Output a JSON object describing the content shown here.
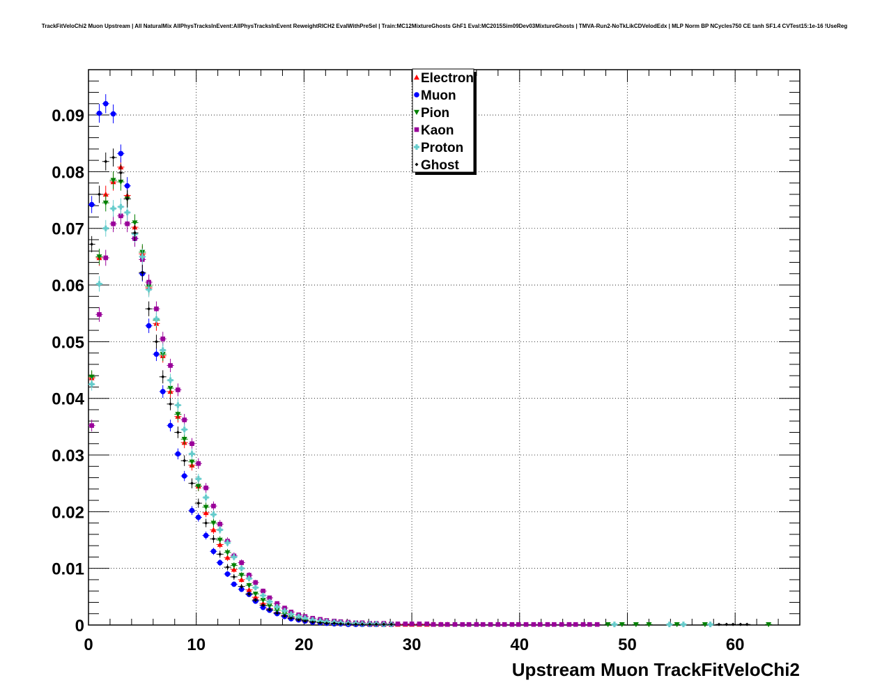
{
  "chart_data": {
    "type": "scatter",
    "title": "TrackFitVeloChi2 Muon Upstream | All NaturalMix AllPhysTracksInEvent:AllPhysTracksInEvent ReweightRICH2 EvalWithPreSel | Train:MC12MixtureGhosts GhF1 Eval:MC2015Sim09Dev03MixtureGhosts | TMVA-Run2-NoTkLikCDVelodEdx | MLP Norm BP NCycles750 CE tanh SF1.4 CVTest15:1e-16 !UseReg",
    "xlabel": "Upstream Muon TrackFitVeloChi2",
    "ylabel": "",
    "xlim": [
      0,
      66
    ],
    "ylim": [
      0,
      0.098
    ],
    "x_ticks": [
      "0",
      "10",
      "20",
      "30",
      "40",
      "50",
      "60"
    ],
    "y_ticks": [
      "0",
      "0.01",
      "0.02",
      "0.03",
      "0.04",
      "0.05",
      "0.06",
      "0.07",
      "0.08",
      "0.09"
    ],
    "grid": true,
    "legend_position": "top-center",
    "series": [
      {
        "name": "Electron",
        "color": "#ff0000",
        "marker": "triangle-up",
        "x": [
          0.3,
          1.0,
          1.6,
          2.3,
          3.0,
          3.6,
          4.3,
          5.0,
          5.6,
          6.3,
          6.9,
          7.6,
          8.3,
          8.9,
          9.6,
          10.2,
          10.9,
          11.6,
          12.2,
          12.9,
          13.5,
          14.2,
          14.9,
          15.5,
          16.2,
          16.8,
          17.5,
          18.2,
          18.8,
          19.5,
          20.1,
          20.8,
          21.5,
          22.1,
          22.8,
          23.4,
          24.1,
          24.8,
          25.4,
          26.1,
          26.7,
          27.4,
          28.1,
          28.7,
          29.4,
          30.0,
          30.7,
          31.4,
          32.0,
          32.7,
          33.3
        ],
        "y": [
          0.0436,
          0.0648,
          0.076,
          0.0782,
          0.0808,
          0.0758,
          0.0702,
          0.0655,
          0.0595,
          0.0532,
          0.0475,
          0.0412,
          0.0368,
          0.0322,
          0.0282,
          0.0245,
          0.0198,
          0.0168,
          0.0142,
          0.0119,
          0.0098,
          0.008,
          0.0062,
          0.0049,
          0.0038,
          0.0029,
          0.0022,
          0.0017,
          0.0013,
          0.001,
          0.0008,
          0.0006,
          0.0005,
          0.0004,
          0.0003,
          0.0003,
          0.0002,
          0.0002,
          0.0002,
          0.0001,
          0.0001,
          0.0001,
          0.0001,
          0.0001,
          0.0001,
          0.0001,
          0.0001,
          0.0001,
          0.0001,
          0.0001,
          0.0001
        ]
      },
      {
        "name": "Muon",
        "color": "#0000ff",
        "marker": "circle",
        "x": [
          0.3,
          1.0,
          1.6,
          2.3,
          3.0,
          3.6,
          4.3,
          5.0,
          5.6,
          6.3,
          6.9,
          7.6,
          8.3,
          8.9,
          9.6,
          10.2,
          10.9,
          11.6,
          12.2,
          12.9,
          13.5,
          14.2,
          14.9,
          15.5,
          16.2,
          16.8,
          17.5,
          18.2,
          18.8,
          19.5,
          20.1,
          20.8,
          21.5,
          22.1,
          22.8,
          23.4,
          24.1,
          24.8,
          25.4,
          26.1,
          26.7,
          27.4,
          28.1
        ],
        "y": [
          0.0742,
          0.0903,
          0.092,
          0.0902,
          0.0832,
          0.0775,
          0.0682,
          0.062,
          0.0528,
          0.0478,
          0.0412,
          0.0352,
          0.0302,
          0.0263,
          0.0202,
          0.019,
          0.0158,
          0.013,
          0.011,
          0.009,
          0.0072,
          0.0063,
          0.0054,
          0.0042,
          0.0031,
          0.0026,
          0.002,
          0.0015,
          0.0011,
          0.0009,
          0.0007,
          0.0005,
          0.0004,
          0.0003,
          0.0002,
          0.0002,
          0.0001,
          0.0001,
          0.0001,
          0.0001,
          0.0001,
          0.0001,
          0.0001
        ]
      },
      {
        "name": "Pion",
        "color": "#008000",
        "marker": "triangle-down",
        "x": [
          0.3,
          1.0,
          1.6,
          2.3,
          3.0,
          3.6,
          4.3,
          5.0,
          5.6,
          6.3,
          6.9,
          7.6,
          8.3,
          8.9,
          9.6,
          10.2,
          10.9,
          11.6,
          12.2,
          12.9,
          13.5,
          14.2,
          14.9,
          15.5,
          16.2,
          16.8,
          17.5,
          18.2,
          18.8,
          19.5,
          20.1,
          20.8,
          21.5,
          22.1,
          22.8,
          23.4,
          24.1,
          24.8,
          25.4,
          26.1,
          26.7,
          27.4,
          28.1,
          48.2,
          49.5,
          50.8,
          52.0,
          54.6,
          57.2,
          63.1
        ],
        "y": [
          0.0438,
          0.065,
          0.0745,
          0.0785,
          0.0782,
          0.0752,
          0.071,
          0.0658,
          0.0598,
          0.0538,
          0.0478,
          0.0418,
          0.0372,
          0.0328,
          0.0288,
          0.0245,
          0.0208,
          0.018,
          0.015,
          0.0128,
          0.0105,
          0.0088,
          0.007,
          0.0055,
          0.0044,
          0.0034,
          0.0026,
          0.002,
          0.0015,
          0.0012,
          0.0009,
          0.0007,
          0.0005,
          0.0004,
          0.0003,
          0.0003,
          0.0002,
          0.0002,
          0.0002,
          0.0001,
          0.0001,
          0.0001,
          0.0001,
          0.0001,
          0.0001,
          0.0001,
          0.0001,
          0.0001,
          0.0001,
          0.0001
        ]
      },
      {
        "name": "Kaon",
        "color": "#990099",
        "marker": "square",
        "x": [
          0.3,
          1.0,
          1.6,
          2.3,
          3.0,
          3.6,
          4.3,
          5.0,
          5.6,
          6.3,
          6.9,
          7.6,
          8.3,
          8.9,
          9.6,
          10.2,
          10.9,
          11.6,
          12.2,
          12.9,
          13.5,
          14.2,
          14.9,
          15.5,
          16.2,
          16.8,
          17.5,
          18.2,
          18.8,
          19.5,
          20.1,
          20.8,
          21.5,
          22.1,
          22.8,
          23.4,
          24.1,
          24.8,
          25.4,
          26.1,
          26.7,
          27.4,
          28.1,
          28.7,
          29.4,
          30.0,
          30.7,
          31.4,
          32.0,
          32.7,
          33.3,
          34.0,
          34.7,
          35.3,
          36.0,
          36.6,
          37.3,
          38.0,
          38.6,
          39.3,
          39.9,
          40.6,
          41.3,
          41.9,
          42.6,
          43.2,
          43.9,
          44.6,
          45.2,
          45.9,
          46.5,
          47.2
        ],
        "y": [
          0.0352,
          0.0548,
          0.0648,
          0.0708,
          0.0722,
          0.0708,
          0.0682,
          0.0645,
          0.0605,
          0.0558,
          0.0505,
          0.0458,
          0.0415,
          0.0362,
          0.032,
          0.0285,
          0.0242,
          0.021,
          0.0178,
          0.0148,
          0.0122,
          0.011,
          0.0088,
          0.0075,
          0.006,
          0.0048,
          0.0038,
          0.003,
          0.0023,
          0.0018,
          0.0015,
          0.0012,
          0.001,
          0.0008,
          0.0007,
          0.0006,
          0.0005,
          0.0004,
          0.0004,
          0.0003,
          0.0003,
          0.0003,
          0.0002,
          0.0002,
          0.0002,
          0.0002,
          0.0002,
          0.0002,
          0.0001,
          0.0001,
          0.0001,
          0.0001,
          0.0001,
          0.0001,
          0.0001,
          0.0001,
          0.0001,
          0.0001,
          0.0001,
          0.0001,
          0.0001,
          0.0001,
          0.0001,
          0.0001,
          0.0001,
          0.0001,
          0.0001,
          0.0001,
          0.0001,
          0.0001,
          0.0001,
          0.0001
        ]
      },
      {
        "name": "Proton",
        "color": "#66cccc",
        "marker": "cross",
        "x": [
          0.3,
          1.0,
          1.6,
          2.3,
          3.0,
          3.6,
          4.3,
          5.0,
          5.6,
          6.3,
          6.9,
          7.6,
          8.3,
          8.9,
          9.6,
          10.2,
          10.9,
          11.6,
          12.2,
          12.9,
          13.5,
          14.2,
          14.9,
          15.5,
          16.2,
          16.8,
          17.5,
          18.2,
          18.8,
          19.5,
          20.1,
          20.8,
          21.5,
          22.1,
          22.8,
          23.4,
          24.1,
          24.8,
          25.4,
          26.1,
          26.7,
          27.4,
          28.1,
          48.8,
          53.9,
          55.2,
          57.7
        ],
        "y": [
          0.0425,
          0.0602,
          0.07,
          0.0735,
          0.0738,
          0.0728,
          0.069,
          0.065,
          0.0592,
          0.054,
          0.0485,
          0.0432,
          0.0388,
          0.0345,
          0.0302,
          0.0258,
          0.0225,
          0.0195,
          0.0168,
          0.0145,
          0.012,
          0.01,
          0.0082,
          0.0066,
          0.0052,
          0.0041,
          0.0032,
          0.0025,
          0.0019,
          0.0015,
          0.0012,
          0.0009,
          0.0007,
          0.0006,
          0.0005,
          0.0004,
          0.0003,
          0.0003,
          0.0002,
          0.0002,
          0.0002,
          0.0001,
          0.0001,
          0.0001,
          0.0001,
          0.0001,
          0.0001
        ]
      },
      {
        "name": "Ghost",
        "color": "#000000",
        "marker": "small-diamond",
        "x": [
          0.3,
          1.0,
          1.6,
          2.3,
          3.0,
          3.6,
          4.3,
          5.0,
          5.6,
          6.3,
          6.9,
          7.6,
          8.3,
          8.9,
          9.6,
          10.2,
          10.9,
          11.6,
          12.2,
          12.9,
          13.5,
          14.2,
          14.9,
          15.5,
          16.2,
          16.8,
          17.5,
          18.2,
          18.8,
          19.5,
          20.1,
          20.8,
          21.5,
          22.1,
          22.8,
          23.4,
          24.1,
          24.8,
          25.4,
          26.1,
          26.7,
          27.4,
          28.1,
          58.5,
          59.2,
          59.8,
          60.5,
          61.1
        ],
        "y": [
          0.0672,
          0.076,
          0.0818,
          0.0825,
          0.0798,
          0.0752,
          0.0692,
          0.0622,
          0.0558,
          0.05,
          0.0438,
          0.039,
          0.034,
          0.029,
          0.025,
          0.0215,
          0.018,
          0.0152,
          0.0125,
          0.0102,
          0.0085,
          0.0068,
          0.0055,
          0.0044,
          0.0035,
          0.0027,
          0.0021,
          0.0016,
          0.0012,
          0.0009,
          0.0007,
          0.0005,
          0.0004,
          0.0003,
          0.0003,
          0.0002,
          0.0002,
          0.0001,
          0.0001,
          0.0001,
          0.0001,
          0.0001,
          0.0001,
          0.0001,
          0.0001,
          0.0001,
          0.0001,
          0.0001
        ]
      }
    ]
  }
}
